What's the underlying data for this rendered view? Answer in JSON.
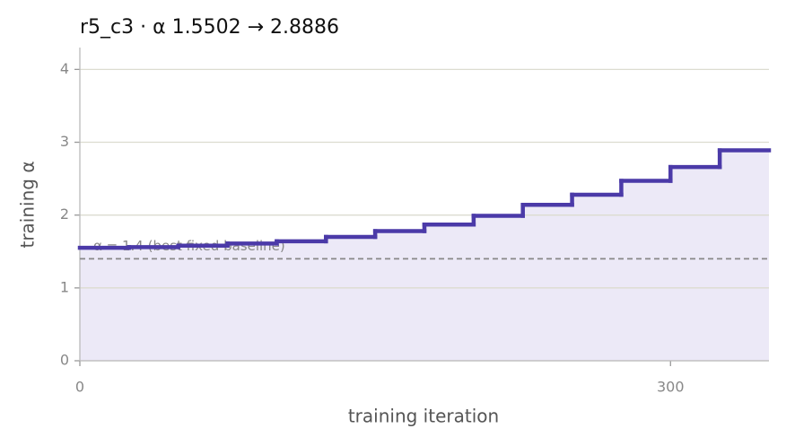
{
  "chart_data": {
    "type": "step",
    "title": "r5_c3   ·   α 1.5502 → 2.8886",
    "x_label": "training iteration",
    "y_label": "training α",
    "x": [
      0,
      25,
      50,
      75,
      100,
      125,
      150,
      175,
      200,
      225,
      250,
      275,
      300,
      325
    ],
    "values": [
      1.5502,
      1.56,
      1.58,
      1.61,
      1.64,
      1.7,
      1.78,
      1.87,
      1.99,
      2.14,
      2.28,
      2.47,
      2.66,
      2.8886
    ],
    "color": "#4b3aa8",
    "fill_color": "#ece9f7",
    "baseline": {
      "value": 1.4,
      "label": "α = 1.4 (best fixed baseline)"
    },
    "xlim": [
      0,
      350
    ],
    "ylim": [
      0,
      4.3
    ],
    "xticks": [
      0,
      300
    ],
    "yticks": [
      0,
      1,
      2,
      3,
      4
    ],
    "grid": true
  }
}
